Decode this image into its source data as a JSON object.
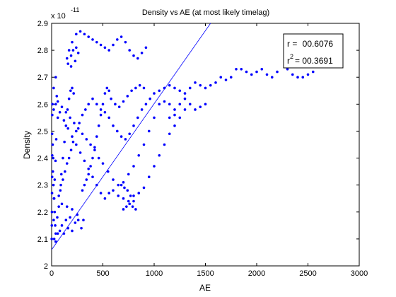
{
  "chart_data": {
    "type": "scatter",
    "title": "Density vs AE (at most likely timelag)",
    "xlabel": "AE",
    "ylabel": "Density",
    "xlim": [
      0,
      3000
    ],
    "ylim": [
      2.0,
      2.9
    ],
    "y_exponent_label": "x 10",
    "y_exponent_power": "-11",
    "xticks": [
      0,
      500,
      1000,
      1500,
      2000,
      2500,
      3000
    ],
    "xtick_labels": [
      "0",
      "500",
      "1000",
      "1500",
      "2000",
      "2500",
      "3000"
    ],
    "yticks": [
      2.0,
      2.1,
      2.2,
      2.3,
      2.4,
      2.5,
      2.6,
      2.7,
      2.8,
      2.9
    ],
    "ytick_labels": [
      "2",
      "2.1",
      "2.2",
      "2.3",
      "2.4",
      "2.5",
      "2.6",
      "2.7",
      "2.8",
      "2.9"
    ],
    "grid": false,
    "marker_color": "#0000ff",
    "fit_line": {
      "x": [
        0,
        1550
      ],
      "y": [
        2.06,
        2.9
      ],
      "color": "#0000ff"
    },
    "annotation": {
      "r_label": "r = ",
      "r_value": "00.6076",
      "r2_label": "r",
      "r2_power": "2",
      "r2_eq": "= ",
      "r2_value": "00.3691"
    },
    "points": [
      [
        1,
        2.1
      ],
      [
        2,
        2.15
      ],
      [
        3,
        2.2
      ],
      [
        4,
        2.27
      ],
      [
        5,
        2.33
      ],
      [
        6,
        2.41
      ],
      [
        5,
        2.49
      ],
      [
        6,
        2.56
      ],
      [
        8,
        2.6
      ],
      [
        20,
        2.58
      ],
      [
        20,
        2.66
      ],
      [
        40,
        2.7
      ],
      [
        50,
        2.63
      ],
      [
        60,
        2.55
      ],
      [
        45,
        2.47
      ],
      [
        38,
        2.39
      ],
      [
        30,
        2.32
      ],
      [
        25,
        2.25
      ],
      [
        20,
        2.17
      ],
      [
        25,
        2.1
      ],
      [
        40,
        2.09
      ],
      [
        60,
        2.12
      ],
      [
        80,
        2.13
      ],
      [
        100,
        2.15
      ],
      [
        120,
        2.12
      ],
      [
        140,
        2.17
      ],
      [
        160,
        2.14
      ],
      [
        180,
        2.18
      ],
      [
        200,
        2.13
      ],
      [
        230,
        2.16
      ],
      [
        260,
        2.17
      ],
      [
        290,
        2.14
      ],
      [
        310,
        2.17
      ],
      [
        250,
        2.19
      ],
      [
        200,
        2.21
      ],
      [
        150,
        2.22
      ],
      [
        100,
        2.23
      ],
      [
        70,
        2.26
      ],
      [
        90,
        2.3
      ],
      [
        110,
        2.32
      ],
      [
        130,
        2.35
      ],
      [
        150,
        2.38
      ],
      [
        170,
        2.4
      ],
      [
        190,
        2.43
      ],
      [
        210,
        2.46
      ],
      [
        240,
        2.5
      ],
      [
        270,
        2.53
      ],
      [
        300,
        2.56
      ],
      [
        330,
        2.58
      ],
      [
        360,
        2.6
      ],
      [
        400,
        2.62
      ],
      [
        440,
        2.6
      ],
      [
        480,
        2.58
      ],
      [
        520,
        2.57
      ],
      [
        560,
        2.55
      ],
      [
        600,
        2.52
      ],
      [
        640,
        2.5
      ],
      [
        680,
        2.48
      ],
      [
        720,
        2.47
      ],
      [
        760,
        2.49
      ],
      [
        800,
        2.52
      ],
      [
        840,
        2.55
      ],
      [
        880,
        2.58
      ],
      [
        920,
        2.6
      ],
      [
        960,
        2.62
      ],
      [
        1000,
        2.64
      ],
      [
        1050,
        2.65
      ],
      [
        1100,
        2.66
      ],
      [
        1150,
        2.67
      ],
      [
        1200,
        2.66
      ],
      [
        1250,
        2.65
      ],
      [
        1300,
        2.64
      ],
      [
        1350,
        2.66
      ],
      [
        1400,
        2.68
      ],
      [
        1450,
        2.67
      ],
      [
        1500,
        2.66
      ],
      [
        1550,
        2.67
      ],
      [
        1600,
        2.68
      ],
      [
        1650,
        2.7
      ],
      [
        1700,
        2.69
      ],
      [
        1750,
        2.7
      ],
      [
        1800,
        2.73
      ],
      [
        1850,
        2.73
      ],
      [
        1900,
        2.72
      ],
      [
        1950,
        2.71
      ],
      [
        2000,
        2.72
      ],
      [
        2050,
        2.73
      ],
      [
        2100,
        2.71
      ],
      [
        2150,
        2.7
      ],
      [
        2200,
        2.72
      ],
      [
        2300,
        2.73
      ],
      [
        2350,
        2.71
      ],
      [
        2400,
        2.7
      ],
      [
        2450,
        2.7
      ],
      [
        2500,
        2.71
      ],
      [
        2550,
        2.72
      ],
      [
        1000,
        2.55
      ],
      [
        950,
        2.5
      ],
      [
        900,
        2.45
      ],
      [
        850,
        2.41
      ],
      [
        800,
        2.37
      ],
      [
        750,
        2.34
      ],
      [
        700,
        2.31
      ],
      [
        650,
        2.3
      ],
      [
        600,
        2.32
      ],
      [
        550,
        2.35
      ],
      [
        500,
        2.38
      ],
      [
        460,
        2.4
      ],
      [
        420,
        2.43
      ],
      [
        380,
        2.45
      ],
      [
        340,
        2.47
      ],
      [
        300,
        2.49
      ],
      [
        260,
        2.51
      ],
      [
        220,
        2.53
      ],
      [
        180,
        2.55
      ],
      [
        140,
        2.57
      ],
      [
        100,
        2.59
      ],
      [
        60,
        2.61
      ],
      [
        40,
        2.6
      ],
      [
        80,
        2.57
      ],
      [
        120,
        2.54
      ],
      [
        160,
        2.51
      ],
      [
        200,
        2.48
      ],
      [
        240,
        2.45
      ],
      [
        280,
        2.42
      ],
      [
        320,
        2.39
      ],
      [
        360,
        2.36
      ],
      [
        400,
        2.33
      ],
      [
        440,
        2.3
      ],
      [
        480,
        2.27
      ],
      [
        520,
        2.25
      ],
      [
        560,
        2.27
      ],
      [
        600,
        2.28
      ],
      [
        650,
        2.26
      ],
      [
        700,
        2.25
      ],
      [
        750,
        2.24
      ],
      [
        800,
        2.26
      ],
      [
        850,
        2.27
      ],
      [
        900,
        2.29
      ],
      [
        950,
        2.33
      ],
      [
        1000,
        2.37
      ],
      [
        1050,
        2.41
      ],
      [
        1100,
        2.45
      ],
      [
        1150,
        2.49
      ],
      [
        1200,
        2.52
      ],
      [
        1250,
        2.55
      ],
      [
        1200,
        2.58
      ],
      [
        1150,
        2.6
      ],
      [
        1100,
        2.61
      ],
      [
        1050,
        2.6
      ],
      [
        240,
        2.86
      ],
      [
        280,
        2.87
      ],
      [
        320,
        2.86
      ],
      [
        360,
        2.85
      ],
      [
        400,
        2.84
      ],
      [
        440,
        2.83
      ],
      [
        480,
        2.82
      ],
      [
        520,
        2.81
      ],
      [
        560,
        2.8
      ],
      [
        600,
        2.82
      ],
      [
        640,
        2.84
      ],
      [
        680,
        2.85
      ],
      [
        720,
        2.83
      ],
      [
        760,
        2.8
      ],
      [
        800,
        2.78
      ],
      [
        840,
        2.77
      ],
      [
        880,
        2.79
      ],
      [
        920,
        2.81
      ],
      [
        200,
        2.83
      ],
      [
        170,
        2.8
      ],
      [
        150,
        2.77
      ],
      [
        160,
        2.75
      ],
      [
        190,
        2.74
      ],
      [
        230,
        2.76
      ],
      [
        260,
        2.79
      ],
      [
        240,
        2.81
      ],
      [
        210,
        2.8
      ],
      [
        190,
        2.78
      ],
      [
        700,
        2.21
      ],
      [
        730,
        2.22
      ],
      [
        760,
        2.23
      ],
      [
        790,
        2.22
      ],
      [
        820,
        2.21
      ],
      [
        800,
        2.24
      ],
      [
        770,
        2.26
      ],
      [
        740,
        2.28
      ],
      [
        710,
        2.29
      ],
      [
        680,
        2.3
      ],
      [
        300,
        2.28
      ],
      [
        320,
        2.3
      ],
      [
        340,
        2.32
      ],
      [
        360,
        2.34
      ],
      [
        380,
        2.37
      ],
      [
        400,
        2.4
      ],
      [
        420,
        2.44
      ],
      [
        440,
        2.48
      ],
      [
        460,
        2.52
      ],
      [
        480,
        2.56
      ],
      [
        500,
        2.6
      ],
      [
        520,
        2.64
      ],
      [
        540,
        2.66
      ],
      [
        560,
        2.65
      ],
      [
        580,
        2.62
      ],
      [
        620,
        2.6
      ],
      [
        660,
        2.59
      ],
      [
        700,
        2.61
      ],
      [
        740,
        2.63
      ],
      [
        780,
        2.65
      ],
      [
        820,
        2.66
      ],
      [
        860,
        2.67
      ],
      [
        900,
        2.66
      ],
      [
        1300,
        2.62
      ],
      [
        1350,
        2.6
      ],
      [
        1400,
        2.58
      ],
      [
        1450,
        2.59
      ],
      [
        1500,
        2.6
      ],
      [
        1250,
        2.6
      ],
      [
        1300,
        2.58
      ],
      [
        1200,
        2.56
      ],
      [
        1150,
        2.55
      ],
      [
        10,
        2.45
      ],
      [
        15,
        2.4
      ],
      [
        12,
        2.35
      ],
      [
        18,
        2.3
      ],
      [
        22,
        2.25
      ],
      [
        30,
        2.2
      ],
      [
        35,
        2.15
      ],
      [
        40,
        2.12
      ],
      [
        55,
        2.18
      ],
      [
        70,
        2.22
      ],
      [
        85,
        2.28
      ],
      [
        95,
        2.34
      ],
      [
        110,
        2.4
      ],
      [
        125,
        2.46
      ],
      [
        140,
        2.52
      ],
      [
        155,
        2.58
      ],
      [
        170,
        2.62
      ],
      [
        185,
        2.65
      ],
      [
        200,
        2.66
      ],
      [
        215,
        2.64
      ]
    ]
  }
}
